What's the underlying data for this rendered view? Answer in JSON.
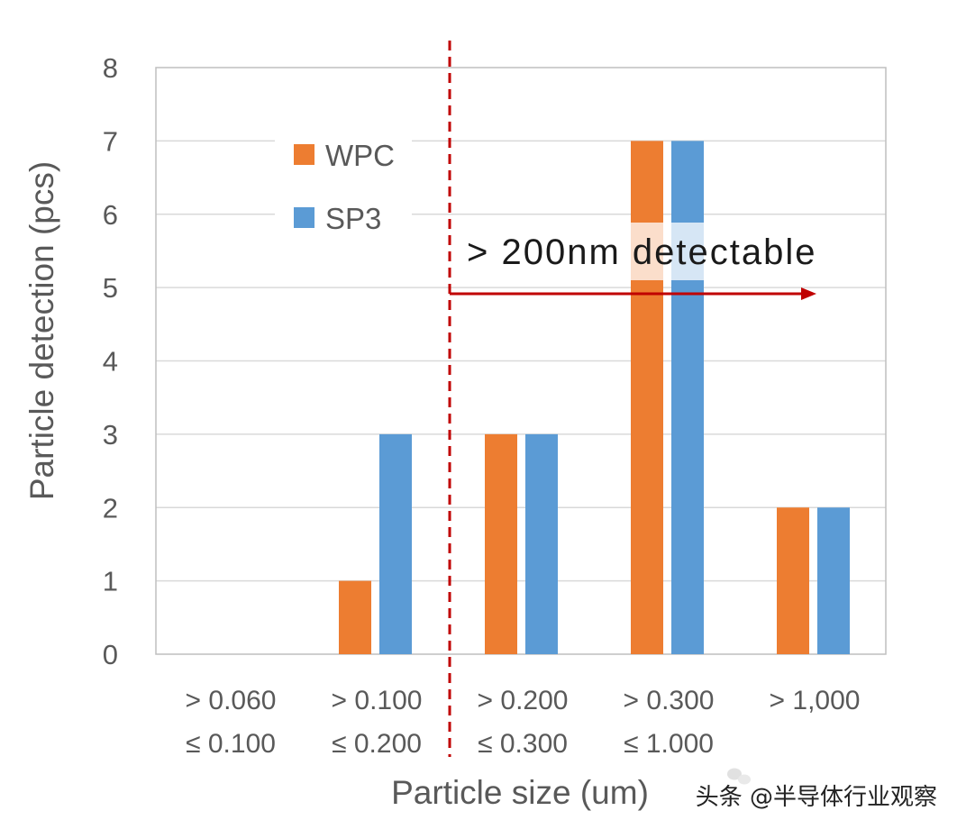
{
  "chart_data": {
    "type": "bar",
    "xlabel": "Particle size (um)",
    "ylabel": "Particle detection (pcs)",
    "ylim": [
      0,
      8
    ],
    "yticks": [
      "0",
      "1",
      "2",
      "3",
      "4",
      "5",
      "6",
      "7",
      "8"
    ],
    "grid": true,
    "legend": "upper-left",
    "categories": [
      [
        "> 0.060",
        "≤ 0.100"
      ],
      [
        "> 0.100",
        "≤ 0.200"
      ],
      [
        "> 0.200",
        "≤ 0.300"
      ],
      [
        "> 0.300",
        "≤ 1.000"
      ],
      [
        "> 1,000"
      ]
    ],
    "series": [
      {
        "name": "WPC",
        "color": "#ED7D31",
        "values": [
          0,
          1,
          3,
          7,
          2
        ]
      },
      {
        "name": "SP3",
        "color": "#5B9BD5",
        "values": [
          0,
          3,
          3,
          7,
          2
        ]
      }
    ],
    "annotations": [
      {
        "label": "> 200nm detectable",
        "between_categories": [
          1,
          2
        ],
        "color": "#C00000"
      }
    ]
  },
  "watermark": {
    "text": "头条 @半导体行业观察",
    "icon": "watermark-logo-icon"
  }
}
